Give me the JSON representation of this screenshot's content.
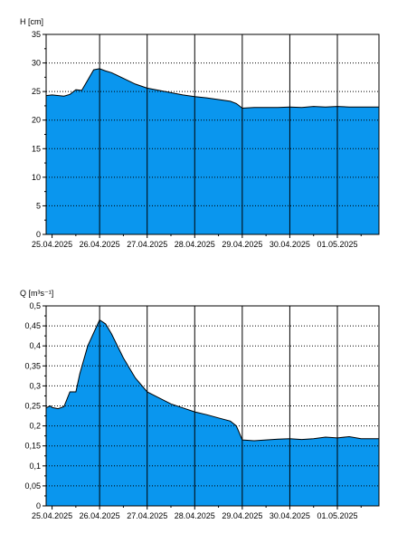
{
  "chart_data": [
    {
      "type": "area",
      "ylabel": "H [cm]",
      "ylim": [
        0,
        35
      ],
      "yticks": [
        0,
        5,
        10,
        15,
        20,
        25,
        30,
        35
      ],
      "ytick_labels": [
        "0",
        "5",
        "10",
        "15",
        "20",
        "25",
        "30",
        "35"
      ],
      "x_start": "24.04.2025 21:00",
      "x_end": "01.05.2025 21:00",
      "xticks": [
        "25.04.2025",
        "26.04.2025",
        "27.04.2025",
        "28.04.2025",
        "29.04.2025",
        "30.04.2025",
        "01.05.2025"
      ],
      "grid": "dotted horizontal, solid vertical at day boundaries",
      "fill_color": "#0a96ee",
      "series": [
        {
          "x": [
            "24.04.2025 21:00",
            "25.04.2025 00:00",
            "25.04.2025 06:00",
            "25.04.2025 09:00",
            "25.04.2025 12:00",
            "25.04.2025 15:00",
            "25.04.2025 18:00",
            "25.04.2025 21:00",
            "26.04.2025 00:00",
            "26.04.2025 03:00",
            "26.04.2025 06:00",
            "26.04.2025 12:00",
            "26.04.2025 18:00",
            "27.04.2025 00:00",
            "27.04.2025 06:00",
            "27.04.2025 12:00",
            "27.04.2025 18:00",
            "28.04.2025 00:00",
            "28.04.2025 06:00",
            "28.04.2025 12:00",
            "28.04.2025 18:00",
            "28.04.2025 21:00",
            "29.04.2025 00:00",
            "29.04.2025 06:00",
            "29.04.2025 12:00",
            "29.04.2025 18:00",
            "30.04.2025 00:00",
            "30.04.2025 06:00",
            "30.04.2025 12:00",
            "30.04.2025 18:00",
            "01.05.2025 00:00",
            "01.05.2025 06:00",
            "01.05.2025 12:00",
            "01.05.2025 21:00"
          ],
          "values": [
            24.3,
            24.4,
            24.2,
            24.5,
            25.3,
            25.2,
            27.0,
            28.8,
            29.0,
            28.6,
            28.3,
            27.3,
            26.3,
            25.6,
            25.2,
            24.8,
            24.4,
            24.1,
            23.9,
            23.6,
            23.3,
            22.9,
            22.1,
            22.2,
            22.2,
            22.2,
            22.3,
            22.2,
            22.4,
            22.3,
            22.4,
            22.3,
            22.3,
            22.3
          ]
        }
      ]
    },
    {
      "type": "area",
      "ylabel": "Q [m³s⁻¹]",
      "ylim": [
        0,
        0.5
      ],
      "yticks": [
        0,
        0.05,
        0.1,
        0.15,
        0.2,
        0.25,
        0.3,
        0.35,
        0.4,
        0.45,
        0.5
      ],
      "ytick_labels": [
        "0",
        "0,05",
        "0,1",
        "0,15",
        "0,2",
        "0,25",
        "0,3",
        "0,35",
        "0,4",
        "0,45",
        "0,5"
      ],
      "x_start": "24.04.2025 21:00",
      "x_end": "01.05.2025 21:00",
      "xticks": [
        "25.04.2025",
        "26.04.2025",
        "27.04.2025",
        "28.04.2025",
        "29.04.2025",
        "30.04.2025",
        "01.05.2025"
      ],
      "grid": "dotted horizontal, solid vertical at day boundaries",
      "fill_color": "#0a96ee",
      "series": [
        {
          "x": [
            "24.04.2025 21:00",
            "24.04.2025 23:00",
            "25.04.2025 00:00",
            "25.04.2025 03:00",
            "25.04.2025 06:00",
            "25.04.2025 09:00",
            "25.04.2025 12:00",
            "25.04.2025 14:00",
            "25.04.2025 18:00",
            "26.04.2025 00:00",
            "26.04.2025 03:00",
            "26.04.2025 06:00",
            "26.04.2025 12:00",
            "26.04.2025 18:00",
            "27.04.2025 00:00",
            "27.04.2025 06:00",
            "27.04.2025 12:00",
            "27.04.2025 18:00",
            "28.04.2025 00:00",
            "28.04.2025 06:00",
            "28.04.2025 12:00",
            "28.04.2025 18:00",
            "28.04.2025 21:00",
            "29.04.2025 00:00",
            "29.04.2025 06:00",
            "29.04.2025 12:00",
            "29.04.2025 18:00",
            "30.04.2025 00:00",
            "30.04.2025 06:00",
            "30.04.2025 12:00",
            "30.04.2025 18:00",
            "01.05.2025 00:00",
            "01.05.2025 06:00",
            "01.05.2025 12:00",
            "01.05.2025 21:00"
          ],
          "values": [
            0.245,
            0.25,
            0.246,
            0.243,
            0.248,
            0.285,
            0.285,
            0.33,
            0.4,
            0.465,
            0.455,
            0.43,
            0.37,
            0.32,
            0.285,
            0.27,
            0.255,
            0.245,
            0.235,
            0.228,
            0.22,
            0.212,
            0.2,
            0.165,
            0.163,
            0.165,
            0.167,
            0.168,
            0.166,
            0.168,
            0.172,
            0.17,
            0.173,
            0.168,
            0.168
          ]
        }
      ]
    }
  ]
}
